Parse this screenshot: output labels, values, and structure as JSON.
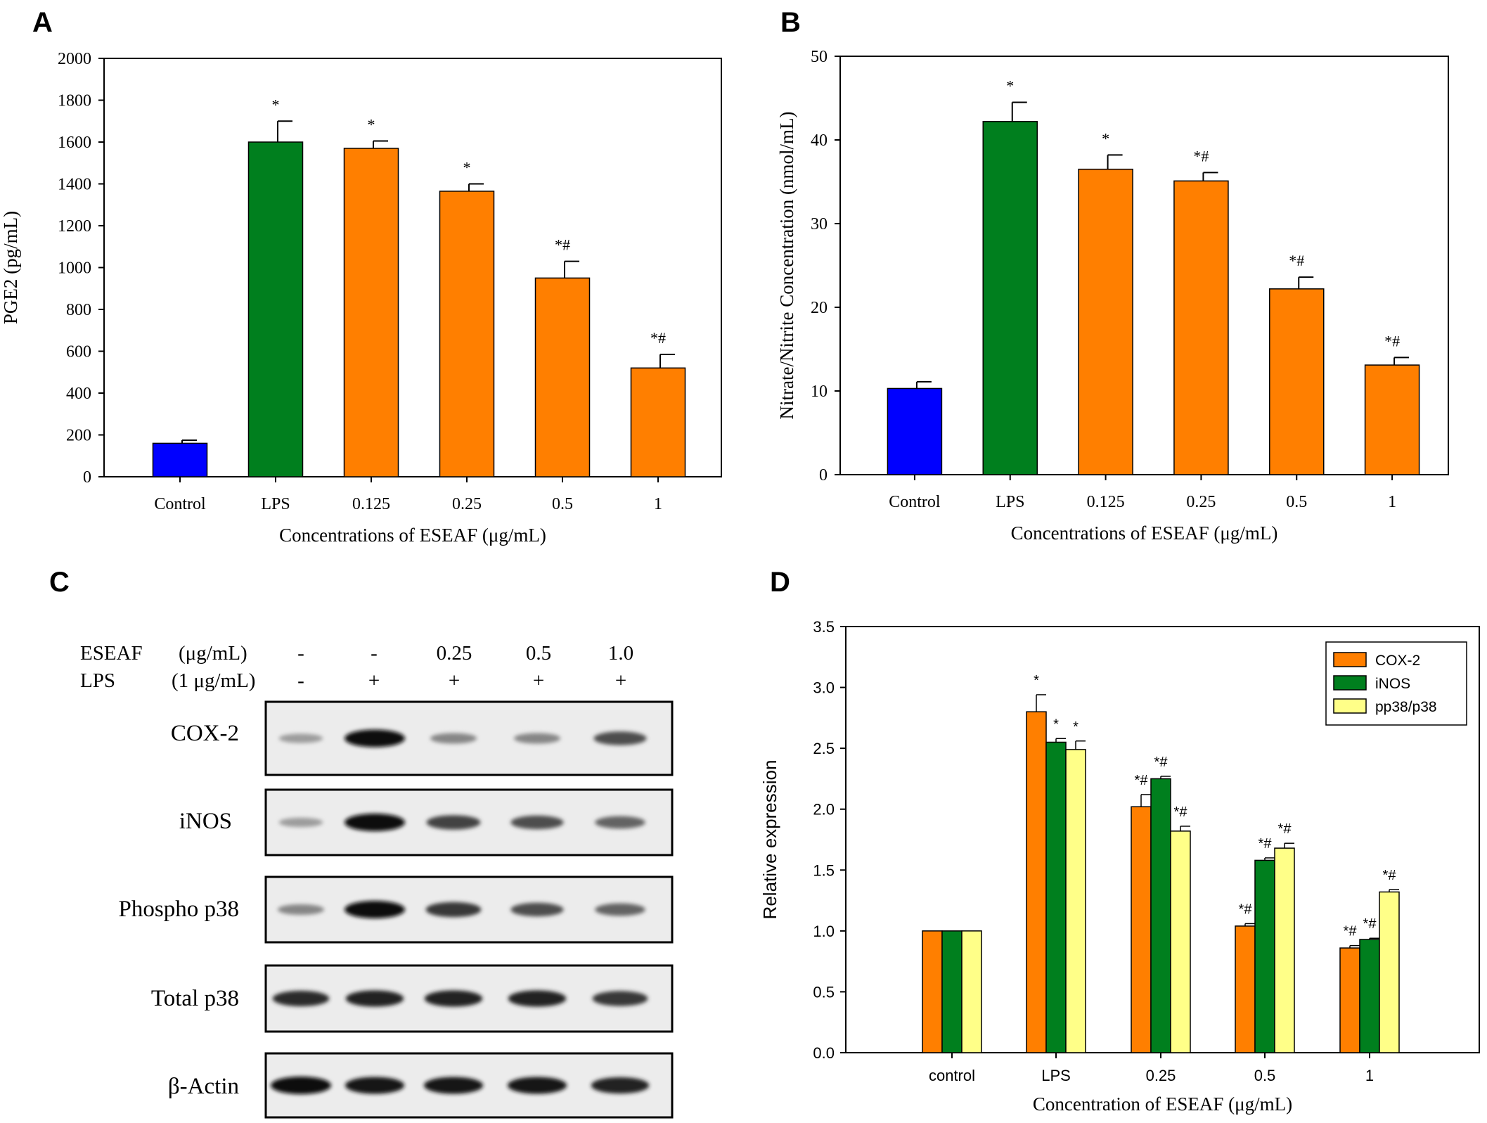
{
  "panels": {
    "a": "A",
    "b": "B",
    "c": "C",
    "d": "D"
  },
  "colors": {
    "control": "#0000ff",
    "lps": "#007f1e",
    "treated": "#ff7f00",
    "cox2": "#ff7f00",
    "inos": "#007f1e",
    "pp38": "#ffff88"
  },
  "chart_data": [
    {
      "id": "A",
      "type": "bar",
      "title": "",
      "xlabel": "Concentrations of ESEAF (μg/mL)",
      "ylabel": "PGE2 (pg/mL)",
      "ylim": [
        0,
        2000
      ],
      "yticks": [
        0,
        200,
        400,
        600,
        800,
        1000,
        1200,
        1400,
        1600,
        1800,
        2000
      ],
      "categories": [
        "Control",
        "LPS",
        "0.125",
        "0.25",
        "0.5",
        "1"
      ],
      "values": [
        160,
        1600,
        1570,
        1365,
        950,
        520
      ],
      "errors": [
        15,
        100,
        35,
        35,
        80,
        65
      ],
      "annotations": [
        "",
        "*",
        "*",
        "*",
        "*#",
        "*#"
      ],
      "bar_color_keys": [
        "control",
        "lps",
        "treated",
        "treated",
        "treated",
        "treated"
      ]
    },
    {
      "id": "B",
      "type": "bar",
      "title": "",
      "xlabel": "Concentrations of ESEAF (μg/mL)",
      "ylabel": "Nitrate/Nitrite Concentration (nmol/mL)",
      "ylim": [
        0,
        50
      ],
      "yticks": [
        0,
        10,
        20,
        30,
        40,
        50
      ],
      "categories": [
        "Control",
        "LPS",
        "0.125",
        "0.25",
        "0.5",
        "1"
      ],
      "values": [
        10.3,
        42.2,
        36.5,
        35.1,
        22.2,
        13.1
      ],
      "errors": [
        0.8,
        2.3,
        1.7,
        1.0,
        1.4,
        0.9
      ],
      "annotations": [
        "",
        "*",
        "*",
        "*#",
        "*#",
        "*#"
      ],
      "bar_color_keys": [
        "control",
        "lps",
        "treated",
        "treated",
        "treated",
        "treated"
      ]
    },
    {
      "id": "D",
      "type": "bar",
      "title": "",
      "xlabel": "Concentration of ESEAF (μg/mL)",
      "ylabel": "Relative expression",
      "ylim": [
        0,
        3.5
      ],
      "yticks": [
        "0.0",
        "0.5",
        "1.0",
        "1.5",
        "2.0",
        "2.5",
        "3.0",
        "3.5"
      ],
      "categories": [
        "control",
        "LPS",
        "0.25",
        "0.5",
        "1"
      ],
      "legend_position": "top-right",
      "series": [
        {
          "name": "COX-2",
          "color_key": "cox2",
          "values": [
            1.0,
            2.8,
            2.02,
            1.04,
            0.86
          ],
          "errors": [
            0,
            0.14,
            0.1,
            0.02,
            0.02
          ],
          "annotations": [
            "",
            "*",
            "*#",
            "*#",
            "*#"
          ]
        },
        {
          "name": "iNOS",
          "color_key": "inos",
          "values": [
            1.0,
            2.55,
            2.25,
            1.58,
            0.93
          ],
          "errors": [
            0,
            0.03,
            0.02,
            0.02,
            0.01
          ],
          "annotations": [
            "",
            "*",
            "*#",
            "*#",
            "*#"
          ]
        },
        {
          "name": "pp38/p38",
          "color_key": "pp38",
          "values": [
            1.0,
            2.49,
            1.82,
            1.68,
            1.32
          ],
          "errors": [
            0,
            0.07,
            0.04,
            0.04,
            0.02
          ],
          "annotations": [
            "",
            "*",
            "*#",
            "*#",
            "*#"
          ]
        }
      ]
    }
  ],
  "western_blot": {
    "header": {
      "eseaf_label": "ESEAF",
      "eseaf_unit": "(μg/mL)",
      "lps_label": "LPS",
      "lps_unit": "(1 μg/mL)",
      "eseaf_values": [
        "-",
        "-",
        "0.25",
        "0.5",
        "1.0"
      ],
      "lps_values": [
        "-",
        "+",
        "+",
        "+",
        "+"
      ]
    },
    "rows": [
      {
        "label": "COX-2",
        "intensity": [
          0.35,
          1.0,
          0.45,
          0.45,
          0.7
        ]
      },
      {
        "label": "iNOS",
        "intensity": [
          0.35,
          1.0,
          0.75,
          0.7,
          0.6
        ]
      },
      {
        "label": "Phospho p38",
        "intensity": [
          0.45,
          1.0,
          0.8,
          0.7,
          0.6
        ]
      },
      {
        "label": "Total p38",
        "intensity": [
          0.85,
          0.9,
          0.9,
          0.9,
          0.8
        ]
      },
      {
        "label": "β-Actin",
        "intensity": [
          1.0,
          0.95,
          0.95,
          0.95,
          0.9
        ]
      }
    ]
  }
}
